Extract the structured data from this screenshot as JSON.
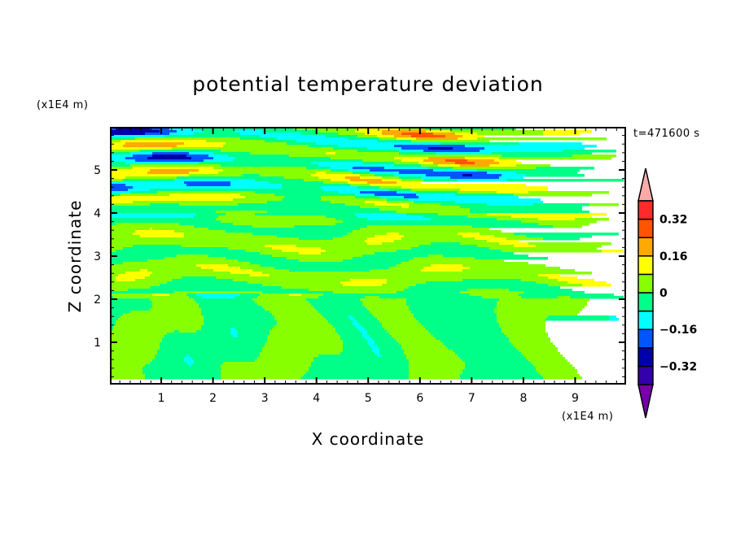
{
  "chart_data": {
    "type": "heatmap",
    "subtype": "filled-contour",
    "title": "potential temperature deviation",
    "xlabel": "X coordinate",
    "ylabel": "Z coordinate",
    "x_unit": "(x1E4 m)",
    "y_unit": "(x1E4 m)",
    "time_label": "t=471600 s",
    "xlim": [
      0,
      10
    ],
    "ylim": [
      0,
      6
    ],
    "x_ticks": [
      1,
      2,
      3,
      4,
      5,
      6,
      7,
      8,
      9
    ],
    "x_tick_labels": [
      "1",
      "2",
      "3",
      "4",
      "5",
      "6",
      "7",
      "8",
      "9"
    ],
    "y_ticks": [
      1,
      2,
      3,
      4,
      5
    ],
    "y_tick_labels": [
      "1",
      "2",
      "3",
      "4",
      "5"
    ],
    "levels": [
      -0.4,
      -0.32,
      -0.24,
      -0.16,
      -0.08,
      0,
      0.08,
      0.16,
      0.24,
      0.32,
      0.4
    ],
    "colorbar_labels": [
      "0.32",
      "0.16",
      "0",
      "−0.16",
      "−0.32"
    ],
    "colorbar_label_values": [
      0.32,
      0.16,
      0,
      -0.16,
      -0.32
    ],
    "colors": [
      "#7700aa",
      "#3300aa",
      "#0000aa",
      "#0055ff",
      "#00ffff",
      "#00ff88",
      "#88ff00",
      "#ffff00",
      "#ffaa00",
      "#ff5500",
      "#ff2a2a",
      "#ffaaaa"
    ],
    "field_description_regions": [
      "z<2.1: weak -0.08..0.08 convective plumes",
      "2.1<z<4: weak layered 0..0.08",
      "z>4: strong layered +/-0.4 waves"
    ]
  }
}
